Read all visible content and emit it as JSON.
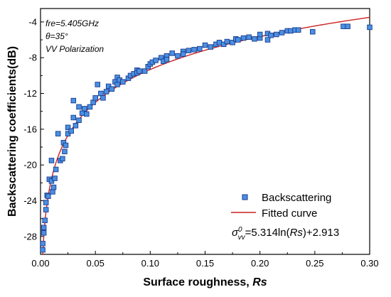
{
  "chart_data": {
    "type": "scatter",
    "xlabel_main": "Surface roughness, ",
    "xlabel_var": "Rs",
    "ylabel": "Backscattering coefficients(dB)",
    "xlim": [
      0,
      0.3
    ],
    "ylim": [
      -30,
      -2.5
    ],
    "x_ticks": [
      0.0,
      0.05,
      0.1,
      0.15,
      0.2,
      0.25,
      0.3
    ],
    "x_tick_labels": [
      "0.00",
      "0.05",
      "0.10",
      "0.15",
      "0.20",
      "0.25",
      "0.30"
    ],
    "y_ticks": [
      -28,
      -24,
      -20,
      -16,
      -12,
      -8,
      -4
    ],
    "y_tick_labels": [
      "-28",
      "-24",
      "-20",
      "-16",
      "-12",
      "-8",
      "-4"
    ],
    "annotations": {
      "frequency": "fre=5.405GHz",
      "angle": "θ=35°",
      "polarization": "VV Polarization"
    },
    "legend": {
      "placement": "bottom-right",
      "scatter_label": "Backscattering",
      "fit_label": "Fitted curve"
    },
    "equation": {
      "sigma": "σ",
      "sup": "0",
      "sub": "vv",
      "text1": "=5.314ln(",
      "var": "Rs",
      "text2": ")+2.913"
    },
    "fit": {
      "a": 5.314,
      "b": 2.913,
      "x_start": 0.0015,
      "x_end": 0.3
    },
    "colors": {
      "marker_fill": "#4a90e2",
      "marker_edge": "#1a3a8c",
      "fit_line": "#cc2222",
      "axis": "#000000"
    },
    "series": [
      {
        "kind": "measured",
        "points": [
          [
            0.002,
            -29.5
          ],
          [
            0.002,
            -28.8
          ],
          [
            0.003,
            -27.6
          ],
          [
            0.003,
            -27.0
          ],
          [
            0.004,
            -26.2
          ],
          [
            0.005,
            -25.0
          ],
          [
            0.005,
            -24.2
          ],
          [
            0.006,
            -23.4
          ],
          [
            0.007,
            -23.5
          ],
          [
            0.008,
            -21.6
          ],
          [
            0.01,
            -21.8
          ],
          [
            0.01,
            -19.5
          ],
          [
            0.011,
            -23.0
          ],
          [
            0.012,
            -22.5
          ],
          [
            0.013,
            -21.5
          ],
          [
            0.014,
            -20.5
          ],
          [
            0.016,
            -16.5
          ],
          [
            0.018,
            -19.5
          ],
          [
            0.02,
            -19.3
          ],
          [
            0.021,
            -17.5
          ],
          [
            0.022,
            -18.5
          ],
          [
            0.023,
            -17.8
          ],
          [
            0.025,
            -16.5
          ],
          [
            0.025,
            -15.8
          ],
          [
            0.028,
            -16.2
          ],
          [
            0.03,
            -14.7
          ],
          [
            0.03,
            -12.8
          ],
          [
            0.032,
            -15.6
          ],
          [
            0.035,
            -15.0
          ],
          [
            0.035,
            -13.5
          ],
          [
            0.038,
            -14.2
          ],
          [
            0.04,
            -13.7
          ],
          [
            0.042,
            -14.3
          ],
          [
            0.045,
            -13.5
          ],
          [
            0.048,
            -13.0
          ],
          [
            0.05,
            -12.5
          ],
          [
            0.052,
            -11.0
          ],
          [
            0.055,
            -12.0
          ],
          [
            0.057,
            -12.5
          ],
          [
            0.06,
            -11.8
          ],
          [
            0.062,
            -11.2
          ],
          [
            0.065,
            -11.5
          ],
          [
            0.068,
            -10.7
          ],
          [
            0.07,
            -10.2
          ],
          [
            0.07,
            -11.0
          ],
          [
            0.072,
            -10.5
          ],
          [
            0.075,
            -10.7
          ],
          [
            0.08,
            -10.3
          ],
          [
            0.082,
            -10.0
          ],
          [
            0.085,
            -9.8
          ],
          [
            0.088,
            -9.4
          ],
          [
            0.088,
            -9.7
          ],
          [
            0.09,
            -9.5
          ],
          [
            0.095,
            -9.5
          ],
          [
            0.098,
            -9.0
          ],
          [
            0.1,
            -8.7
          ],
          [
            0.102,
            -8.5
          ],
          [
            0.105,
            -8.3
          ],
          [
            0.11,
            -8.0
          ],
          [
            0.112,
            -8.4
          ],
          [
            0.115,
            -7.8
          ],
          [
            0.115,
            -8.2
          ],
          [
            0.12,
            -7.5
          ],
          [
            0.125,
            -7.8
          ],
          [
            0.13,
            -7.3
          ],
          [
            0.13,
            -7.6
          ],
          [
            0.135,
            -7.2
          ],
          [
            0.14,
            -7.1
          ],
          [
            0.145,
            -7.0
          ],
          [
            0.15,
            -6.6
          ],
          [
            0.155,
            -6.8
          ],
          [
            0.16,
            -6.5
          ],
          [
            0.163,
            -6.3
          ],
          [
            0.167,
            -6.5
          ],
          [
            0.17,
            -6.2
          ],
          [
            0.175,
            -6.3
          ],
          [
            0.178,
            -5.9
          ],
          [
            0.18,
            -6.0
          ],
          [
            0.185,
            -5.8
          ],
          [
            0.19,
            -5.7
          ],
          [
            0.195,
            -5.9
          ],
          [
            0.2,
            -5.8
          ],
          [
            0.2,
            -5.4
          ],
          [
            0.207,
            -6.0
          ],
          [
            0.207,
            -5.3
          ],
          [
            0.21,
            -5.5
          ],
          [
            0.215,
            -5.4
          ],
          [
            0.22,
            -5.2
          ],
          [
            0.225,
            -5.0
          ],
          [
            0.228,
            -5.0
          ],
          [
            0.232,
            -4.9
          ],
          [
            0.235,
            -4.9
          ],
          [
            0.248,
            -5.1
          ],
          [
            0.276,
            -4.5
          ],
          [
            0.28,
            -4.5
          ],
          [
            0.3,
            -4.6
          ]
        ]
      }
    ]
  }
}
